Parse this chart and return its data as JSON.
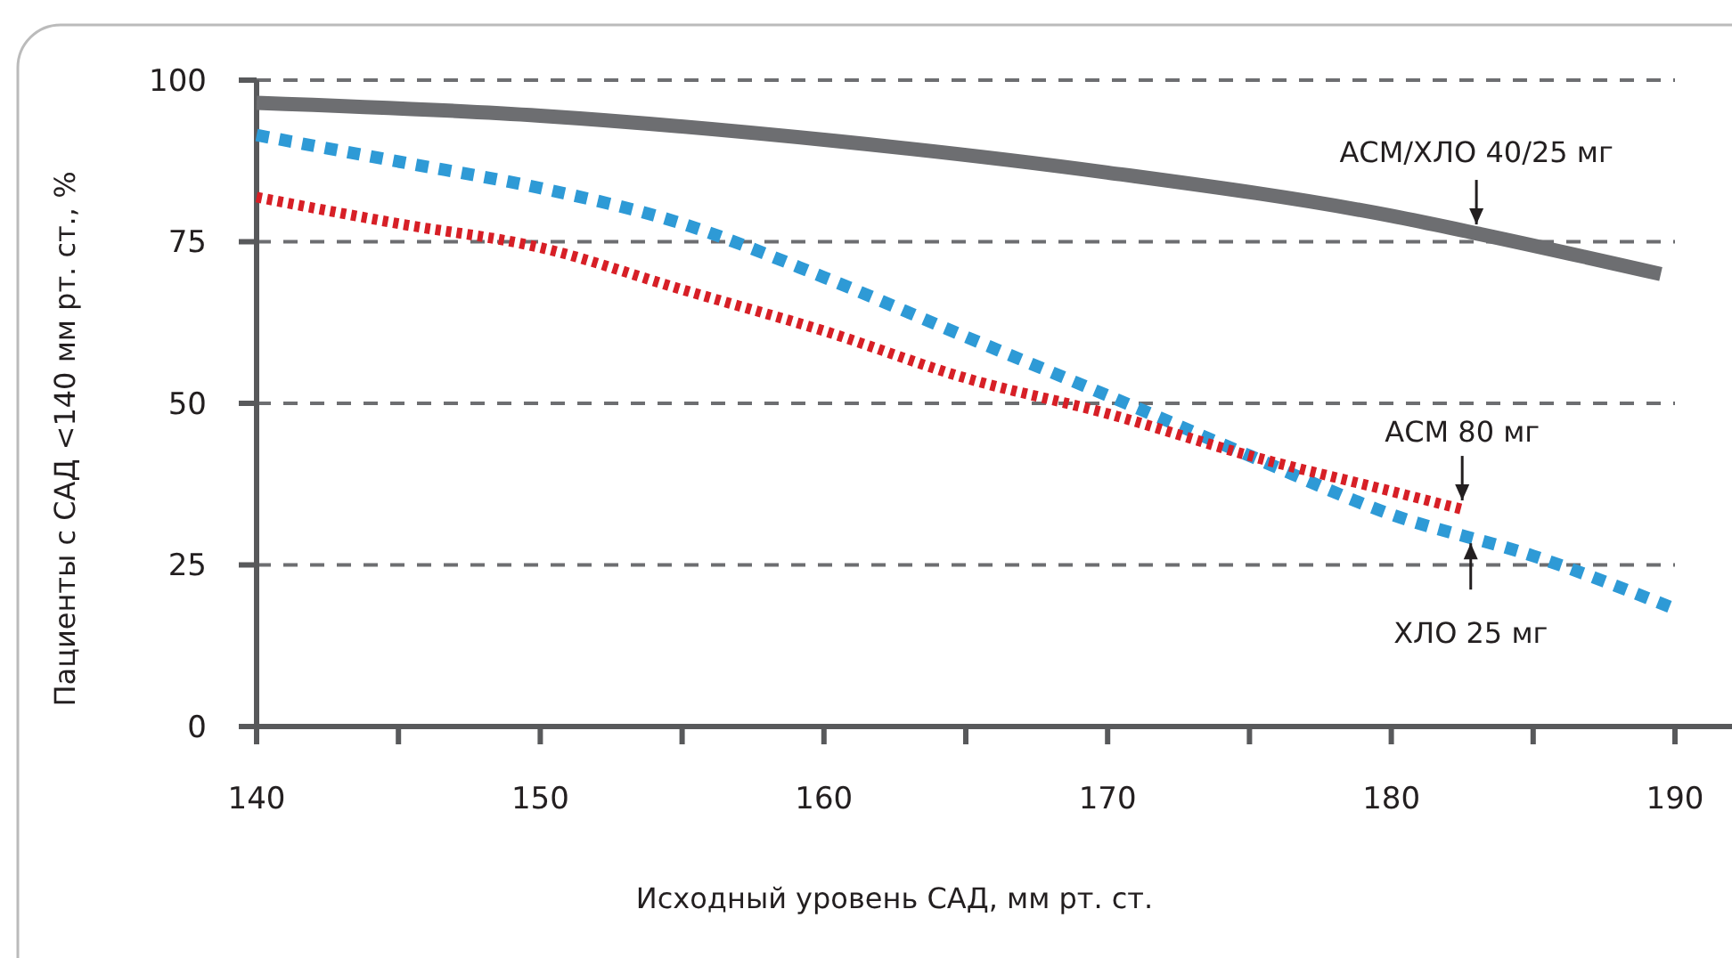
{
  "chart_data": {
    "type": "line",
    "xlabel": "Исходный уровень САД, мм рт. ст.",
    "ylabel": "Пациенты с САД <140 мм рт. ст., %",
    "xlim": [
      140,
      190
    ],
    "ylim": [
      0,
      100
    ],
    "xticks": [
      140,
      {
        "value": 145,
        "label": null
      },
      150,
      {
        "value": 155,
        "label": null
      },
      160,
      {
        "value": 165,
        "label": null
      },
      170,
      {
        "value": 175,
        "label": null
      },
      180,
      {
        "value": 185,
        "label": null
      },
      190
    ],
    "yticks": [
      0,
      25,
      50,
      75,
      100
    ],
    "grid": "y",
    "marker": "none",
    "series": [
      {
        "color": "#6d6e71",
        "line_style": "solid",
        "x": [
          140,
          150,
          160.4,
          170,
          180,
          183,
          189.5
        ],
        "values": [
          96.5,
          94.5,
          90.6,
          85.7,
          79,
          76.3,
          70
        ]
      },
      {
        "color": "#2e9ad6",
        "line_style": "dashed",
        "x": [
          140,
          145,
          150,
          155,
          160,
          165,
          170,
          175,
          180,
          185,
          190
        ],
        "values": [
          91.5,
          87.4,
          83.3,
          77.8,
          69.5,
          60.3,
          51.2,
          41.9,
          32.8,
          26.4,
          18.2
        ]
      },
      {
        "color": "#d71f26",
        "line_style": "dotted",
        "x": [
          140,
          145,
          150,
          155,
          160,
          165,
          170,
          175,
          180,
          182.5
        ],
        "values": [
          81.9,
          77.8,
          74.1,
          67.6,
          61.2,
          53.9,
          48.4,
          41.9,
          36.4,
          33.6
        ]
      }
    ],
    "annotations": [
      {
        "text": "АСМ/ХЛО 40/25 мг",
        "x": 183,
        "y": 76.3
      },
      {
        "text": "АСМ 80 мг",
        "x": 182.5,
        "y": 33.6
      },
      {
        "text": "ХЛО 25 мг",
        "x": 182.8,
        "y": 30
      }
    ]
  }
}
